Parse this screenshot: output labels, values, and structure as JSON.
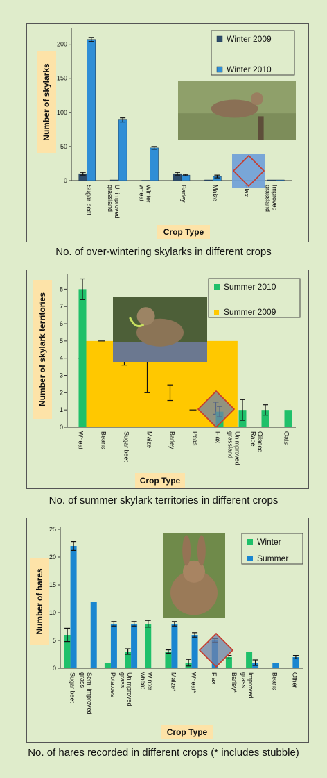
{
  "chart_data": [
    {
      "type": "bar",
      "caption": "No. of over-wintering skylarks in different crops",
      "ylabel": "Number of skylarks",
      "xlabel": "Crop Type",
      "ylim": [
        0,
        220
      ],
      "yticks": [
        0,
        50,
        100,
        150,
        200
      ],
      "categories": [
        "Sugar beet",
        "Unimproved grassland",
        "Winter wheat",
        "Barley",
        "Maize",
        "Flax",
        "Improved grassland"
      ],
      "series": [
        {
          "name": "Winter 2009",
          "color": "#2e4d6b",
          "values": [
            10,
            1,
            0.5,
            10,
            1,
            0,
            1
          ],
          "errors": [
            2,
            0,
            0,
            2,
            0,
            0,
            0
          ]
        },
        {
          "name": "Winter 2010",
          "color": "#2f8ed6",
          "values": [
            207,
            89,
            48,
            8,
            6,
            0,
            1
          ],
          "errors": [
            3,
            3,
            2,
            1,
            2,
            0,
            0
          ]
        }
      ],
      "legend_position": "top-right",
      "grid": false
    },
    {
      "type": "bar",
      "caption": "No. of summer skylark territories in different crops",
      "ylabel": "Number of skylark territories",
      "xlabel": "Crop Type",
      "ylim": [
        0,
        8.7
      ],
      "yticks": [
        0,
        1,
        2,
        3,
        4,
        5,
        6,
        7,
        8
      ],
      "categories": [
        "Wheat",
        "Beans",
        "Sugar beet",
        "Maize",
        "Barley",
        "Peas",
        "Flax",
        "Unimproved grassland",
        "Oilseed Rape",
        "Oats"
      ],
      "series": [
        {
          "name": "Summer 2010",
          "color": "#1fc06a",
          "values": [
            8,
            0,
            0,
            0,
            0,
            0,
            0.9,
            1,
            1,
            1
          ],
          "errors": [
            0.6,
            0,
            0,
            0,
            0,
            0,
            0.3,
            0.6,
            0.3,
            0
          ]
        },
        {
          "name": "Summer 2009",
          "color": "#ffc800",
          "values": [
            4,
            5,
            3.8,
            3,
            2,
            1,
            1.1,
            0,
            0,
            0
          ],
          "errors": [
            0,
            0,
            0.2,
            1,
            0.45,
            0,
            0.35,
            0,
            0,
            0
          ]
        }
      ],
      "legend_position": "top-right",
      "grid": false
    },
    {
      "type": "bar",
      "caption": "No. of hares recorded in different crops (* includes stubble)",
      "ylabel": "Number of hares",
      "xlabel": "Crop Type",
      "ylim": [
        0,
        25
      ],
      "yticks": [
        0,
        5,
        10,
        15,
        20,
        25
      ],
      "categories": [
        "Sugar beet",
        "Semi-improved grass",
        "Potatoes",
        "Unimproved grass",
        "Winter wheat",
        "Maize*",
        "Wheat*",
        "Flax",
        "Barley*",
        "Improved grass",
        "Beans",
        "Other"
      ],
      "series": [
        {
          "name": "Winter",
          "color": "#1fc06a",
          "values": [
            6,
            0,
            1,
            3,
            8,
            3,
            1,
            0,
            2,
            3,
            0,
            0
          ],
          "errors": [
            1.2,
            0,
            0,
            0.5,
            0.6,
            0.3,
            0.6,
            0,
            0.3,
            0,
            0,
            0
          ]
        },
        {
          "name": "Summer",
          "color": "#1a86d0",
          "values": [
            22,
            12,
            8,
            8,
            0,
            8,
            6,
            5,
            0,
            1,
            1,
            2
          ],
          "errors": [
            0.8,
            0,
            0.4,
            0.4,
            0,
            0.4,
            0.4,
            0.3,
            0,
            0.5,
            0,
            0.3
          ]
        }
      ],
      "legend_position": "top-right",
      "grid": false
    }
  ]
}
